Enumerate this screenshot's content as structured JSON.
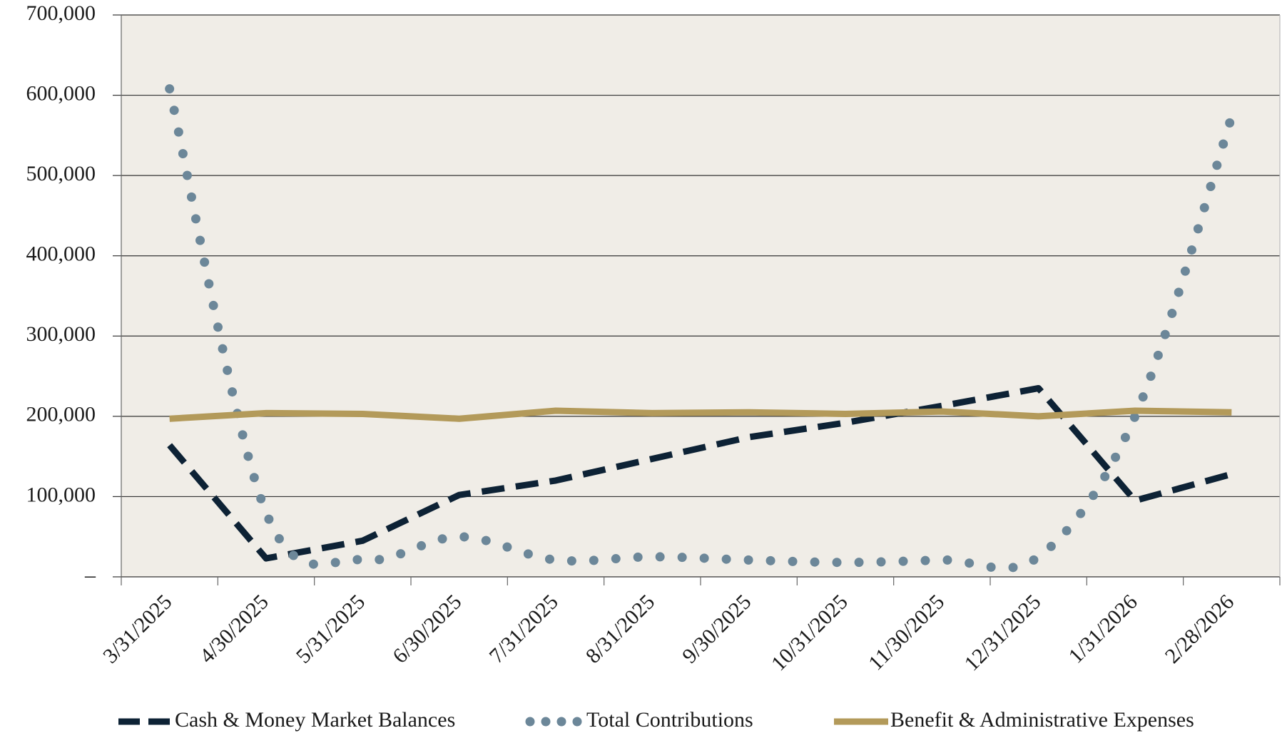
{
  "chart_data": {
    "type": "line",
    "categories": [
      "3/31/2025",
      "4/30/2025",
      "5/31/2025",
      "6/30/2025",
      "7/31/2025",
      "8/31/2025",
      "9/30/2025",
      "10/31/2025",
      "11/30/2025",
      "12/31/2025",
      "1/31/2026",
      "2/28/2026"
    ],
    "series": [
      {
        "name": "Cash & Money Market Balances",
        "color": "#0d2235",
        "style": "dashed",
        "values": [
          164000,
          23000,
          45000,
          102000,
          120000,
          147000,
          174000,
          192000,
          213000,
          235000,
          95000,
          128000
        ]
      },
      {
        "name": "Total Contributions",
        "color": "#6c8799",
        "style": "dotted",
        "smooth": true,
        "values": [
          608000,
          80000,
          21000,
          50000,
          21000,
          25000,
          21000,
          18000,
          21000,
          25000,
          200000,
          573000
        ]
      },
      {
        "name": "Benefit & Administrative Expenses",
        "color": "#b39a5a",
        "style": "solid",
        "values": [
          197000,
          204000,
          203000,
          197000,
          207000,
          204000,
          205000,
          203000,
          206000,
          200000,
          207000,
          205000
        ]
      }
    ],
    "ylim": [
      0,
      700000
    ],
    "yticks": [
      {
        "value": 0,
        "label": "–"
      },
      {
        "value": 100000,
        "label": "100,000"
      },
      {
        "value": 200000,
        "label": "200,000"
      },
      {
        "value": 300000,
        "label": "300,000"
      },
      {
        "value": 400000,
        "label": "400,000"
      },
      {
        "value": 500000,
        "label": "500,000"
      },
      {
        "value": 600000,
        "label": "600,000"
      },
      {
        "value": 700000,
        "label": "700,000"
      }
    ],
    "grid": true,
    "legend": "bottom",
    "plot_background": "#f0ede7"
  }
}
